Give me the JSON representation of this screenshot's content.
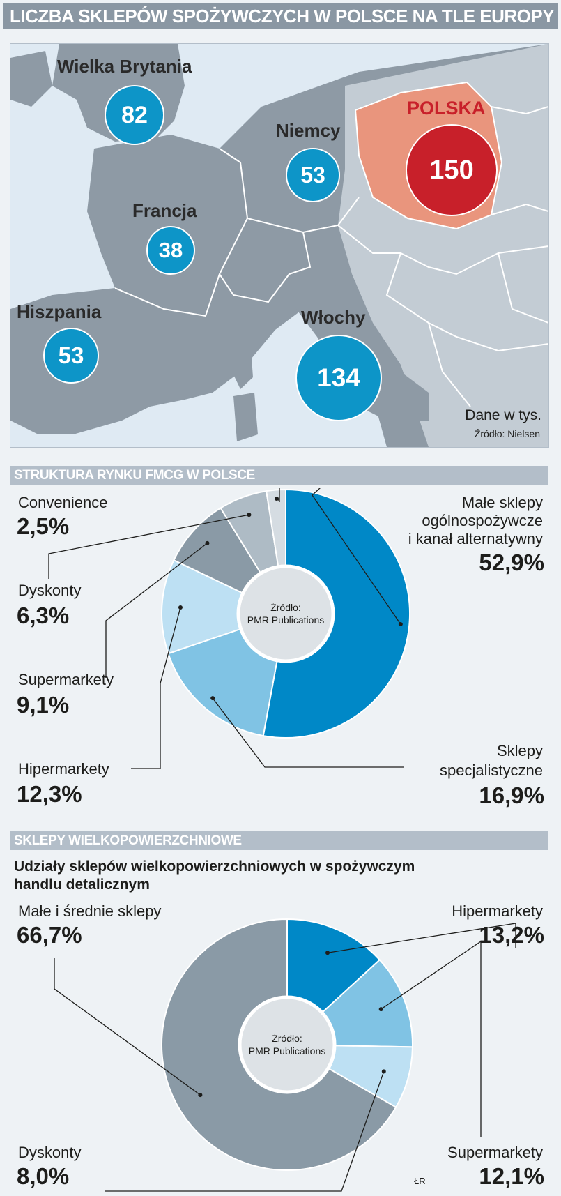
{
  "header": {
    "title": "LICZBA SKLEPÓW SPOŻYWCZYCH W POLSCE NA TLE EUROPY"
  },
  "map": {
    "countries": [
      {
        "name": "Wielka Brytania",
        "value": 82,
        "color": "#0d95c8"
      },
      {
        "name": "Niemcy",
        "value": 53,
        "color": "#0d95c8"
      },
      {
        "name": "POLSKA",
        "value": 150,
        "color": "#c8202a"
      },
      {
        "name": "Francja",
        "value": 38,
        "color": "#0d95c8"
      },
      {
        "name": "Hiszpania",
        "value": 53,
        "color": "#0d95c8"
      },
      {
        "name": "Włochy",
        "value": 134,
        "color": "#0d95c8"
      }
    ],
    "unit_note": "Dane w tys.",
    "source": "Źródło: Nielsen"
  },
  "chart_data": [
    {
      "type": "pie",
      "title": "STRUKTURA RYNKU FMCG W POLSCE",
      "center_label": [
        "Źródło:",
        "PMR Publications"
      ],
      "slices": [
        {
          "name": "Małe sklepy ogólnospożywcze i kanał alternatywny",
          "value": 52.9,
          "label": "52,9%",
          "color": "#0088c7"
        },
        {
          "name": "Sklepy specjalistyczne",
          "value": 16.9,
          "label": "16,9%",
          "color": "#80c3e4"
        },
        {
          "name": "Hipermarkety",
          "value": 12.3,
          "label": "12,3%",
          "color": "#bde0f3"
        },
        {
          "name": "Supermarkety",
          "value": 9.1,
          "label": "9,1%",
          "color": "#8a9aa6"
        },
        {
          "name": "Dyskonty",
          "value": 6.3,
          "label": "6,3%",
          "color": "#aebbc5"
        },
        {
          "name": "Convenience",
          "value": 2.5,
          "label": "2,5%",
          "color": "#d5dce2"
        }
      ]
    },
    {
      "type": "pie",
      "title": "SKLEPY WIELKOPOWIERZCHNIOWE",
      "subtitle": "Udziały sklepów wielkopowierzchniowych w spożywczym handlu detalicznym",
      "center_label": [
        "Źródło:",
        "PMR Publications"
      ],
      "slices": [
        {
          "name": "Hipermarkety",
          "value": 13.2,
          "label": "13,2%",
          "color": "#0088c7"
        },
        {
          "name": "Supermarkety",
          "value": 12.1,
          "label": "12,1%",
          "color": "#80c3e4"
        },
        {
          "name": "Dyskonty",
          "value": 8.0,
          "label": "8,0%",
          "color": "#bde0f3"
        },
        {
          "name": "Małe i średnie sklepy",
          "value": 66.7,
          "label": "66,7%",
          "color": "#8a9aa6"
        }
      ]
    }
  ],
  "fmcg_labels": {
    "convenience": {
      "name": "Convenience",
      "pct": "2,5%"
    },
    "dyskonty": {
      "name": "Dyskonty",
      "pct": "6,3%"
    },
    "supermarkety": {
      "name": "Supermarkety",
      "pct": "9,1%"
    },
    "hipermarkety": {
      "name": "Hipermarkety",
      "pct": "12,3%"
    },
    "male": {
      "line1": "Małe sklepy",
      "line2": "ogólnospożywcze",
      "line3": "i kanał alternatywny",
      "pct": "52,9%"
    },
    "specjalistyczne": {
      "line1": "Sklepy",
      "line2": "specjalistyczne",
      "pct": "16,9%"
    }
  },
  "wielko_labels": {
    "subtitle_line1": "Udziały sklepów wielkopowierzchniowych w spożywczym",
    "subtitle_line2": "handlu detalicznym",
    "male": {
      "name": "Małe i średnie sklepy",
      "pct": "66,7%"
    },
    "hipermarkety": {
      "name": "Hipermarkety",
      "pct": "13,2%"
    },
    "dyskonty": {
      "name": "Dyskonty",
      "pct": "8,0%"
    },
    "supermarkety": {
      "name": "Supermarkety",
      "pct": "12,1%"
    }
  },
  "credit": "ŁR"
}
